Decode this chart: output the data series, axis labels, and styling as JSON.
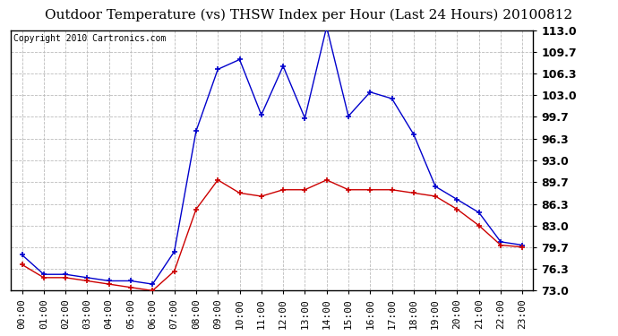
{
  "title": "Outdoor Temperature (vs) THSW Index per Hour (Last 24 Hours) 20100812",
  "copyright": "Copyright 2010 Cartronics.com",
  "hours": [
    "00:00",
    "01:00",
    "02:00",
    "03:00",
    "04:00",
    "05:00",
    "06:00",
    "07:00",
    "08:00",
    "09:00",
    "10:00",
    "11:00",
    "12:00",
    "13:00",
    "14:00",
    "15:00",
    "16:00",
    "17:00",
    "18:00",
    "19:00",
    "20:00",
    "21:00",
    "22:00",
    "23:00"
  ],
  "blue_thsw": [
    78.5,
    75.5,
    75.5,
    75.0,
    74.5,
    74.5,
    74.0,
    79.0,
    97.5,
    107.0,
    108.5,
    100.0,
    107.5,
    99.5,
    113.5,
    99.8,
    103.5,
    102.5,
    97.0,
    89.0,
    87.0,
    85.0,
    80.5,
    80.0
  ],
  "red_temp": [
    77.0,
    75.0,
    75.0,
    74.5,
    74.0,
    73.5,
    73.0,
    76.0,
    85.5,
    90.0,
    88.0,
    87.5,
    88.5,
    88.5,
    90.0,
    88.5,
    88.5,
    88.5,
    88.0,
    87.5,
    85.5,
    83.0,
    80.0,
    79.7
  ],
  "ylim_min": 73.0,
  "ylim_max": 113.0,
  "yticks": [
    73.0,
    76.3,
    79.7,
    83.0,
    86.3,
    89.7,
    93.0,
    96.3,
    99.7,
    103.0,
    106.3,
    109.7,
    113.0
  ],
  "blue_color": "#0000cc",
  "red_color": "#cc0000",
  "bg_color": "#ffffff",
  "grid_color": "#bbbbbb",
  "title_fontsize": 11,
  "copyright_fontsize": 7,
  "tick_fontsize": 8,
  "ytick_fontsize": 9
}
